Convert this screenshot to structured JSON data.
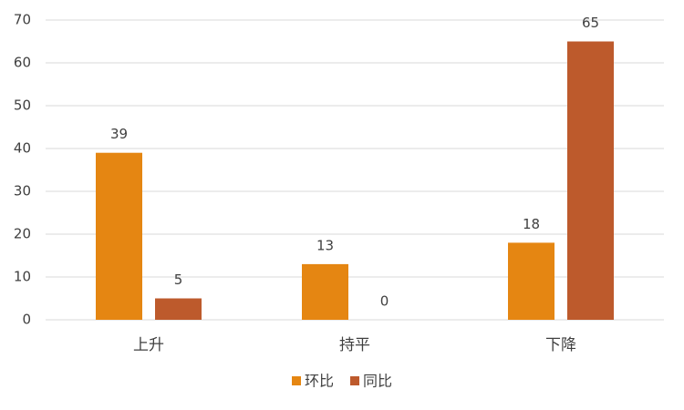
{
  "chart_data": {
    "type": "bar",
    "categories": [
      "上升",
      "持平",
      "下降"
    ],
    "series": [
      {
        "name": "环比",
        "color": "#e58612",
        "values": [
          39,
          13,
          18
        ]
      },
      {
        "name": "同比",
        "color": "#bd5a2c",
        "values": [
          5,
          0,
          65
        ]
      }
    ],
    "ylim": [
      0,
      70
    ],
    "yticks": [
      0,
      10,
      20,
      30,
      40,
      50,
      60,
      70
    ],
    "grid": true,
    "legend": "bottom"
  }
}
